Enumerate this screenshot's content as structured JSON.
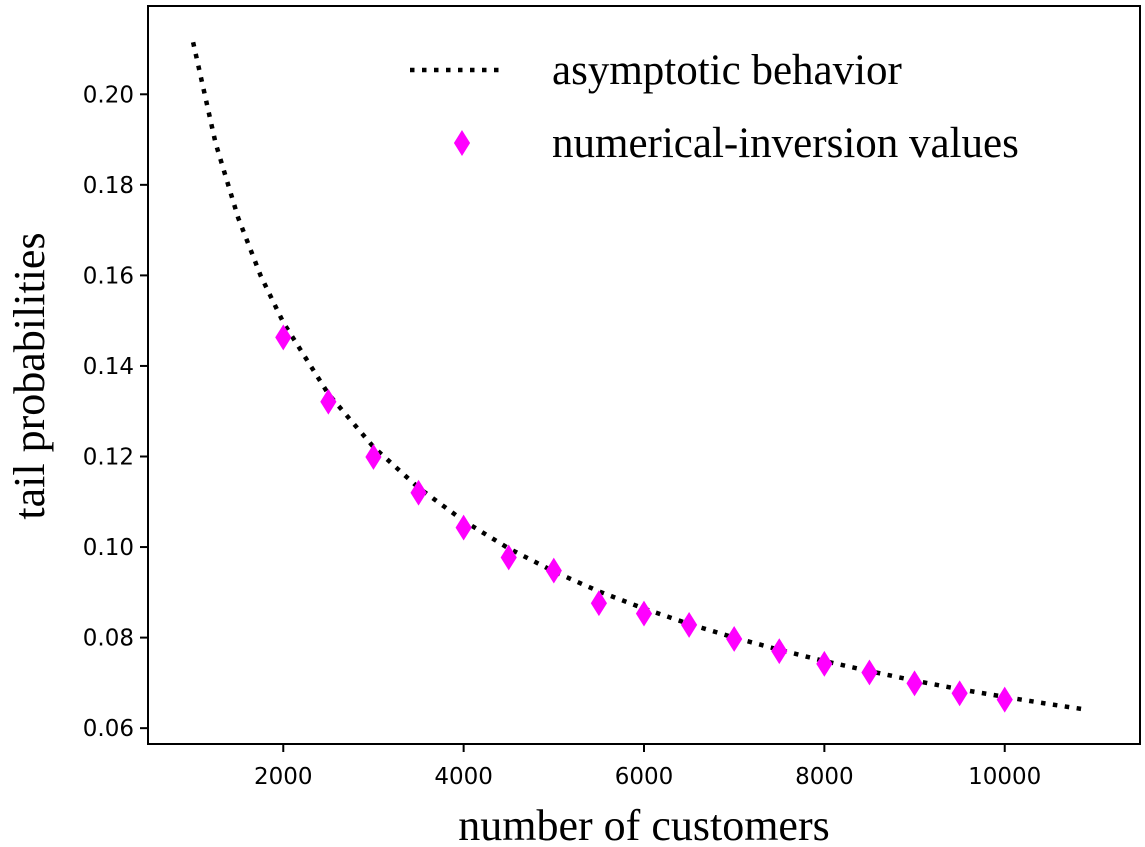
{
  "chart_data": {
    "type": "scatter",
    "xlabel": "number of customers",
    "ylabel": "tail probabilities",
    "xlim": [
      500,
      11500
    ],
    "ylim": [
      0.0565,
      0.2195
    ],
    "x_ticks": [
      2000,
      4000,
      6000,
      8000,
      10000
    ],
    "x_tick_labels": [
      "2000",
      "4000",
      "6000",
      "8000",
      "10000"
    ],
    "y_ticks": [
      0.06,
      0.08,
      0.1,
      0.12,
      0.14,
      0.16,
      0.18,
      0.2
    ],
    "y_tick_labels": [
      "0.06",
      "0.08",
      "0.10",
      "0.12",
      "0.14",
      "0.16",
      "0.18",
      "0.20"
    ],
    "grid": false,
    "legend_position": "top-right",
    "series": [
      {
        "name": "asymptotic behavior",
        "kind": "line",
        "style": "dotted",
        "color": "#000000",
        "x": [
          1000,
          1250,
          1500,
          1750,
          2000,
          2500,
          3000,
          3500,
          4000,
          4500,
          5000,
          5500,
          6000,
          6500,
          7000,
          7500,
          8000,
          8500,
          9000,
          9500,
          10000,
          10500,
          10900
        ],
        "y": [
          0.2115,
          0.1892,
          0.1727,
          0.1599,
          0.1496,
          0.1338,
          0.1221,
          0.1131,
          0.1058,
          0.0997,
          0.0946,
          0.0902,
          0.0864,
          0.083,
          0.08,
          0.0773,
          0.0748,
          0.0726,
          0.0705,
          0.0686,
          0.0669,
          0.0653,
          0.0641
        ]
      },
      {
        "name": "numerical-inversion values",
        "kind": "scatter",
        "marker": "thin-diamond",
        "color": "#ff00ff",
        "x": [
          2000,
          2500,
          3000,
          3500,
          4000,
          4500,
          5000,
          5500,
          6000,
          6500,
          7000,
          7500,
          8000,
          8500,
          9000,
          9500,
          10000
        ],
        "y": [
          0.1463,
          0.1321,
          0.1199,
          0.112,
          0.1043,
          0.0977,
          0.0948,
          0.0876,
          0.0853,
          0.0828,
          0.0797,
          0.077,
          0.0742,
          0.0723,
          0.0699,
          0.0677,
          0.0663
        ]
      }
    ]
  }
}
